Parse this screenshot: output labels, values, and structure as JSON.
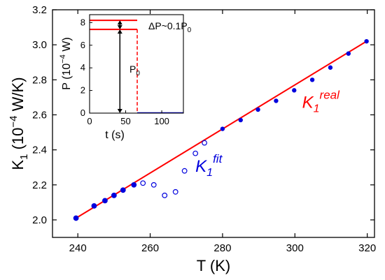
{
  "chart_data": [
    {
      "type": "scatter",
      "xlabel": {
        "main": "T",
        "unit": " (K)"
      },
      "ylabel": {
        "main": "K",
        "sub": "1",
        "unit_pre": " (10",
        "sup": "−4",
        "unit_post": " W/K)"
      },
      "xlim": [
        233,
        322
      ],
      "ylim": [
        1.9,
        3.2
      ],
      "xticks": [
        240,
        260,
        280,
        300,
        320
      ],
      "yticks": [
        2.0,
        2.2,
        2.4,
        2.6,
        2.8,
        3.0,
        3.2
      ],
      "grid": false,
      "colors": {
        "real": "#ff0000",
        "fit": "#0000dd",
        "axis": "#000000"
      },
      "series": [
        {
          "kind": "fit-points",
          "x": [
            239.5,
            244.5,
            247.5,
            250.0,
            252.5,
            255.5,
            258.0,
            261.0,
            264.0,
            267.0,
            269.5,
            272.5,
            275.0
          ],
          "y": [
            2.01,
            2.08,
            2.11,
            2.14,
            2.17,
            2.2,
            2.21,
            2.2,
            2.14,
            2.16,
            2.28,
            2.38,
            2.44
          ]
        },
        {
          "kind": "real-points",
          "x": [
            239.5,
            244.5,
            247.5,
            250.0,
            252.5,
            255.5,
            280.0,
            285.0,
            289.8,
            294.8,
            299.8,
            304.8,
            309.8,
            314.8,
            319.8
          ],
          "y": [
            2.01,
            2.08,
            2.11,
            2.14,
            2.17,
            2.2,
            2.52,
            2.57,
            2.63,
            2.68,
            2.74,
            2.8,
            2.87,
            2.95,
            3.02
          ]
        },
        {
          "kind": "real-line",
          "x": [
            239.5,
            319.8
          ],
          "y": [
            2.01,
            3.02
          ]
        }
      ],
      "annotations": {
        "real_label": {
          "main": "K",
          "sub": "1",
          "sup": "real",
          "x": 302,
          "y": 2.64
        },
        "fit_label": {
          "main": "K",
          "sub": "1",
          "sup": "fit",
          "x": 272.5,
          "y": 2.275
        }
      }
    },
    {
      "type": "line",
      "xlabel": {
        "main": "t (s)"
      },
      "ylabel": {
        "main": "P (10",
        "sup": "−4",
        "unit_post": " W)"
      },
      "xlim": [
        0,
        130
      ],
      "ylim": [
        0,
        8.7
      ],
      "xticks": [
        0,
        50,
        100
      ],
      "yticks": [
        0,
        2,
        4,
        6,
        8
      ],
      "levels": {
        "upper": 8.2,
        "lower": 7.4
      },
      "step_time": 66,
      "annotations": {
        "delta_label": {
          "main": "ΔP~0.1P",
          "sub": "0"
        },
        "p0_label": {
          "main": "P",
          "sub": "0"
        }
      }
    }
  ]
}
